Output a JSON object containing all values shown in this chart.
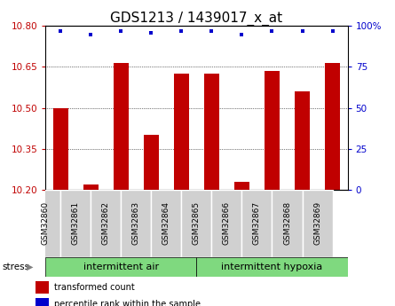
{
  "title": "GDS1213 / 1439017_x_at",
  "samples": [
    "GSM32860",
    "GSM32861",
    "GSM32862",
    "GSM32863",
    "GSM32864",
    "GSM32865",
    "GSM32866",
    "GSM32867",
    "GSM32868",
    "GSM32869"
  ],
  "bar_values": [
    10.5,
    10.22,
    10.665,
    10.4,
    10.625,
    10.625,
    10.23,
    10.635,
    10.56,
    10.665
  ],
  "percentile_values": [
    97,
    95,
    97,
    96,
    97,
    97,
    95,
    97,
    97,
    97
  ],
  "ylim_left": [
    10.2,
    10.8
  ],
  "ylim_right": [
    0,
    100
  ],
  "yticks_left": [
    10.2,
    10.35,
    10.5,
    10.65,
    10.8
  ],
  "yticks_right": [
    0,
    25,
    50,
    75,
    100
  ],
  "bar_color": "#c00000",
  "dot_color": "#0000cc",
  "bar_baseline": 10.2,
  "group1_label": "intermittent air",
  "group2_label": "intermittent hypoxia",
  "group1_indices": [
    0,
    1,
    2,
    3,
    4
  ],
  "group2_indices": [
    5,
    6,
    7,
    8,
    9
  ],
  "group_bg_color": "#7FD97F",
  "tick_label_bg": "#d0d0d0",
  "stress_label": "stress",
  "legend_bar_label": "transformed count",
  "legend_dot_label": "percentile rank within the sample",
  "title_fontsize": 11,
  "tick_fontsize": 7.5,
  "group_fontsize": 8,
  "label_fontsize": 6.5
}
